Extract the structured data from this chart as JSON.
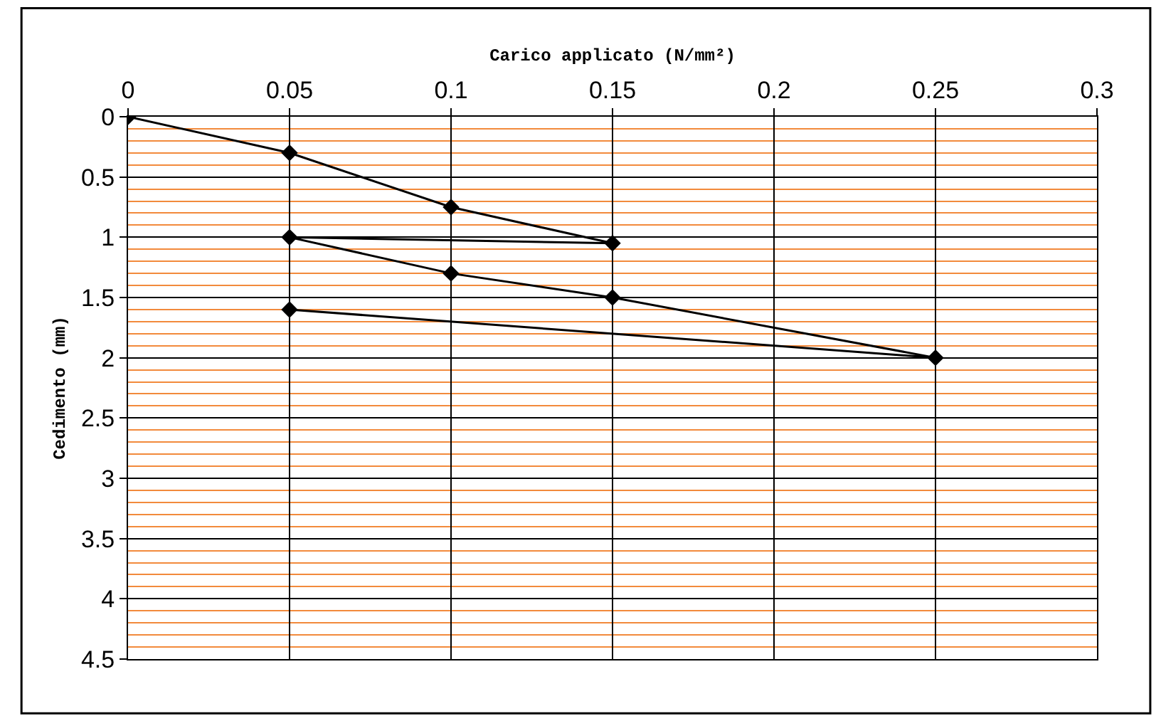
{
  "chart_data": {
    "type": "line",
    "xlabel": "Carico applicato (N/mm²)",
    "ylabel": "Cedimento (mm)",
    "x": [
      0,
      0.05,
      0.1,
      0.15,
      0.05,
      0.1,
      0.15,
      0.25,
      0.05
    ],
    "series": [
      {
        "color": "#000000",
        "values": [
          0,
          0.3,
          0.75,
          1.05,
          1.0,
          1.3,
          1.5,
          2.0,
          1.6
        ]
      }
    ],
    "xlim": [
      0,
      0.3
    ],
    "xticks": [
      0,
      0.05,
      0.1,
      0.15,
      0.2,
      0.25,
      0.3
    ],
    "ylim": [
      4.5,
      0
    ],
    "yticks": [
      0,
      {
        "value": 0.1,
        "label": null
      },
      {
        "value": 0.2,
        "label": null
      },
      {
        "value": 0.3,
        "label": null
      },
      {
        "value": 0.4,
        "label": null
      },
      0.5,
      {
        "value": 0.6,
        "label": null
      },
      {
        "value": 0.7,
        "label": null
      },
      {
        "value": 0.8,
        "label": null
      },
      {
        "value": 0.9,
        "label": null
      },
      1,
      {
        "value": 1.1,
        "label": null
      },
      {
        "value": 1.2,
        "label": null
      },
      {
        "value": 1.3,
        "label": null
      },
      {
        "value": 1.4,
        "label": null
      },
      1.5,
      {
        "value": 1.6,
        "label": null
      },
      {
        "value": 1.7,
        "label": null
      },
      {
        "value": 1.8,
        "label": null
      },
      {
        "value": 1.9,
        "label": null
      },
      2,
      {
        "value": 2.1,
        "label": null
      },
      {
        "value": 2.2,
        "label": null
      },
      {
        "value": 2.3,
        "label": null
      },
      {
        "value": 2.4,
        "label": null
      },
      2.5,
      {
        "value": 2.6,
        "label": null
      },
      {
        "value": 2.7,
        "label": null
      },
      {
        "value": 2.8,
        "label": null
      },
      {
        "value": 2.9,
        "label": null
      },
      3,
      {
        "value": 3.1,
        "label": null
      },
      {
        "value": 3.2,
        "label": null
      },
      {
        "value": 3.3,
        "label": null
      },
      {
        "value": 3.4,
        "label": null
      },
      3.5,
      {
        "value": 3.6,
        "label": null
      },
      {
        "value": 3.7,
        "label": null
      },
      {
        "value": 3.8,
        "label": null
      },
      {
        "value": 3.9,
        "label": null
      },
      4,
      {
        "value": 4.1,
        "label": null
      },
      {
        "value": 4.2,
        "label": null
      },
      {
        "value": 4.3,
        "label": null
      },
      {
        "value": 4.4,
        "label": null
      },
      4.5
    ],
    "grid": true,
    "marker": "diamond",
    "line_style": "solid"
  }
}
